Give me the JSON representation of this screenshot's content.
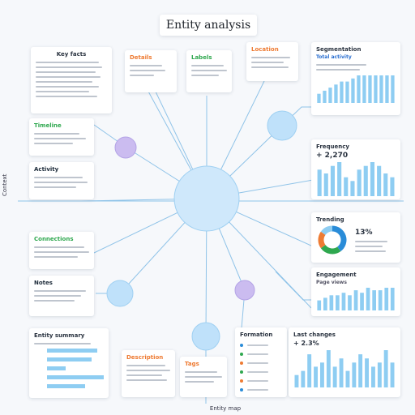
{
  "title": "Entity analysis",
  "side_label": "Context",
  "footer_label": "Entity map",
  "colors": {
    "line": "#8fc3e8",
    "hub": "#cfe8fb",
    "node_blue": "#bfe1fa",
    "node_purple": "#cbbcf0",
    "bar": "#8ecdf2",
    "orange": "#ee7b33",
    "green": "#2fa84f",
    "navy": "#1d2b3a"
  },
  "cards": {
    "top_left": {
      "title": "Key facts"
    },
    "details": {
      "title": "Details"
    },
    "labels": {
      "title": "Labels"
    },
    "location": {
      "title": "Location"
    },
    "timeline": {
      "title": "Timeline"
    },
    "activity": {
      "title": "Activity"
    },
    "connections": {
      "title": "Connections"
    },
    "notes": {
      "title": "Notes"
    },
    "summary": {
      "title": "Entity summary"
    },
    "description": {
      "title": "Description"
    },
    "tags": {
      "title": "Tags"
    },
    "segmentation": {
      "title": "Segmentation",
      "subtitle": "Total activity"
    },
    "frequency": {
      "title": "Frequency",
      "value": "+ 2,270"
    },
    "trending": {
      "title": "Trending",
      "value": "13%"
    },
    "engagement": {
      "title": "Engagement",
      "subtitle": "Page views"
    },
    "formation": {
      "title": "Formation"
    },
    "last_changes": {
      "title": "Last changes",
      "value": "+ 2.3%"
    }
  },
  "chart_data": [
    {
      "type": "bar",
      "title": "Segmentation",
      "values": [
        3,
        4,
        5,
        6,
        7,
        7,
        8,
        9,
        9,
        9,
        9,
        9,
        9,
        9
      ]
    },
    {
      "type": "bar",
      "title": "Frequency",
      "values": [
        7,
        6,
        8,
        9,
        5,
        4,
        7,
        8,
        9,
        8,
        6,
        5
      ]
    },
    {
      "type": "pie",
      "title": "Trending",
      "values": [
        40,
        25,
        20,
        15
      ]
    },
    {
      "type": "bar",
      "title": "Engagement",
      "values": [
        4,
        5,
        6,
        6,
        7,
        6,
        8,
        7,
        9,
        8,
        8,
        9,
        9
      ]
    },
    {
      "type": "bar",
      "title": "Last changes",
      "values": [
        3,
        4,
        8,
        5,
        6,
        9,
        5,
        7,
        4,
        6,
        8,
        7,
        5,
        6,
        9,
        6
      ]
    },
    {
      "type": "bar",
      "orientation": "horizontal",
      "title": "Entity summary",
      "values": [
        8,
        7,
        3,
        9,
        6
      ]
    }
  ]
}
